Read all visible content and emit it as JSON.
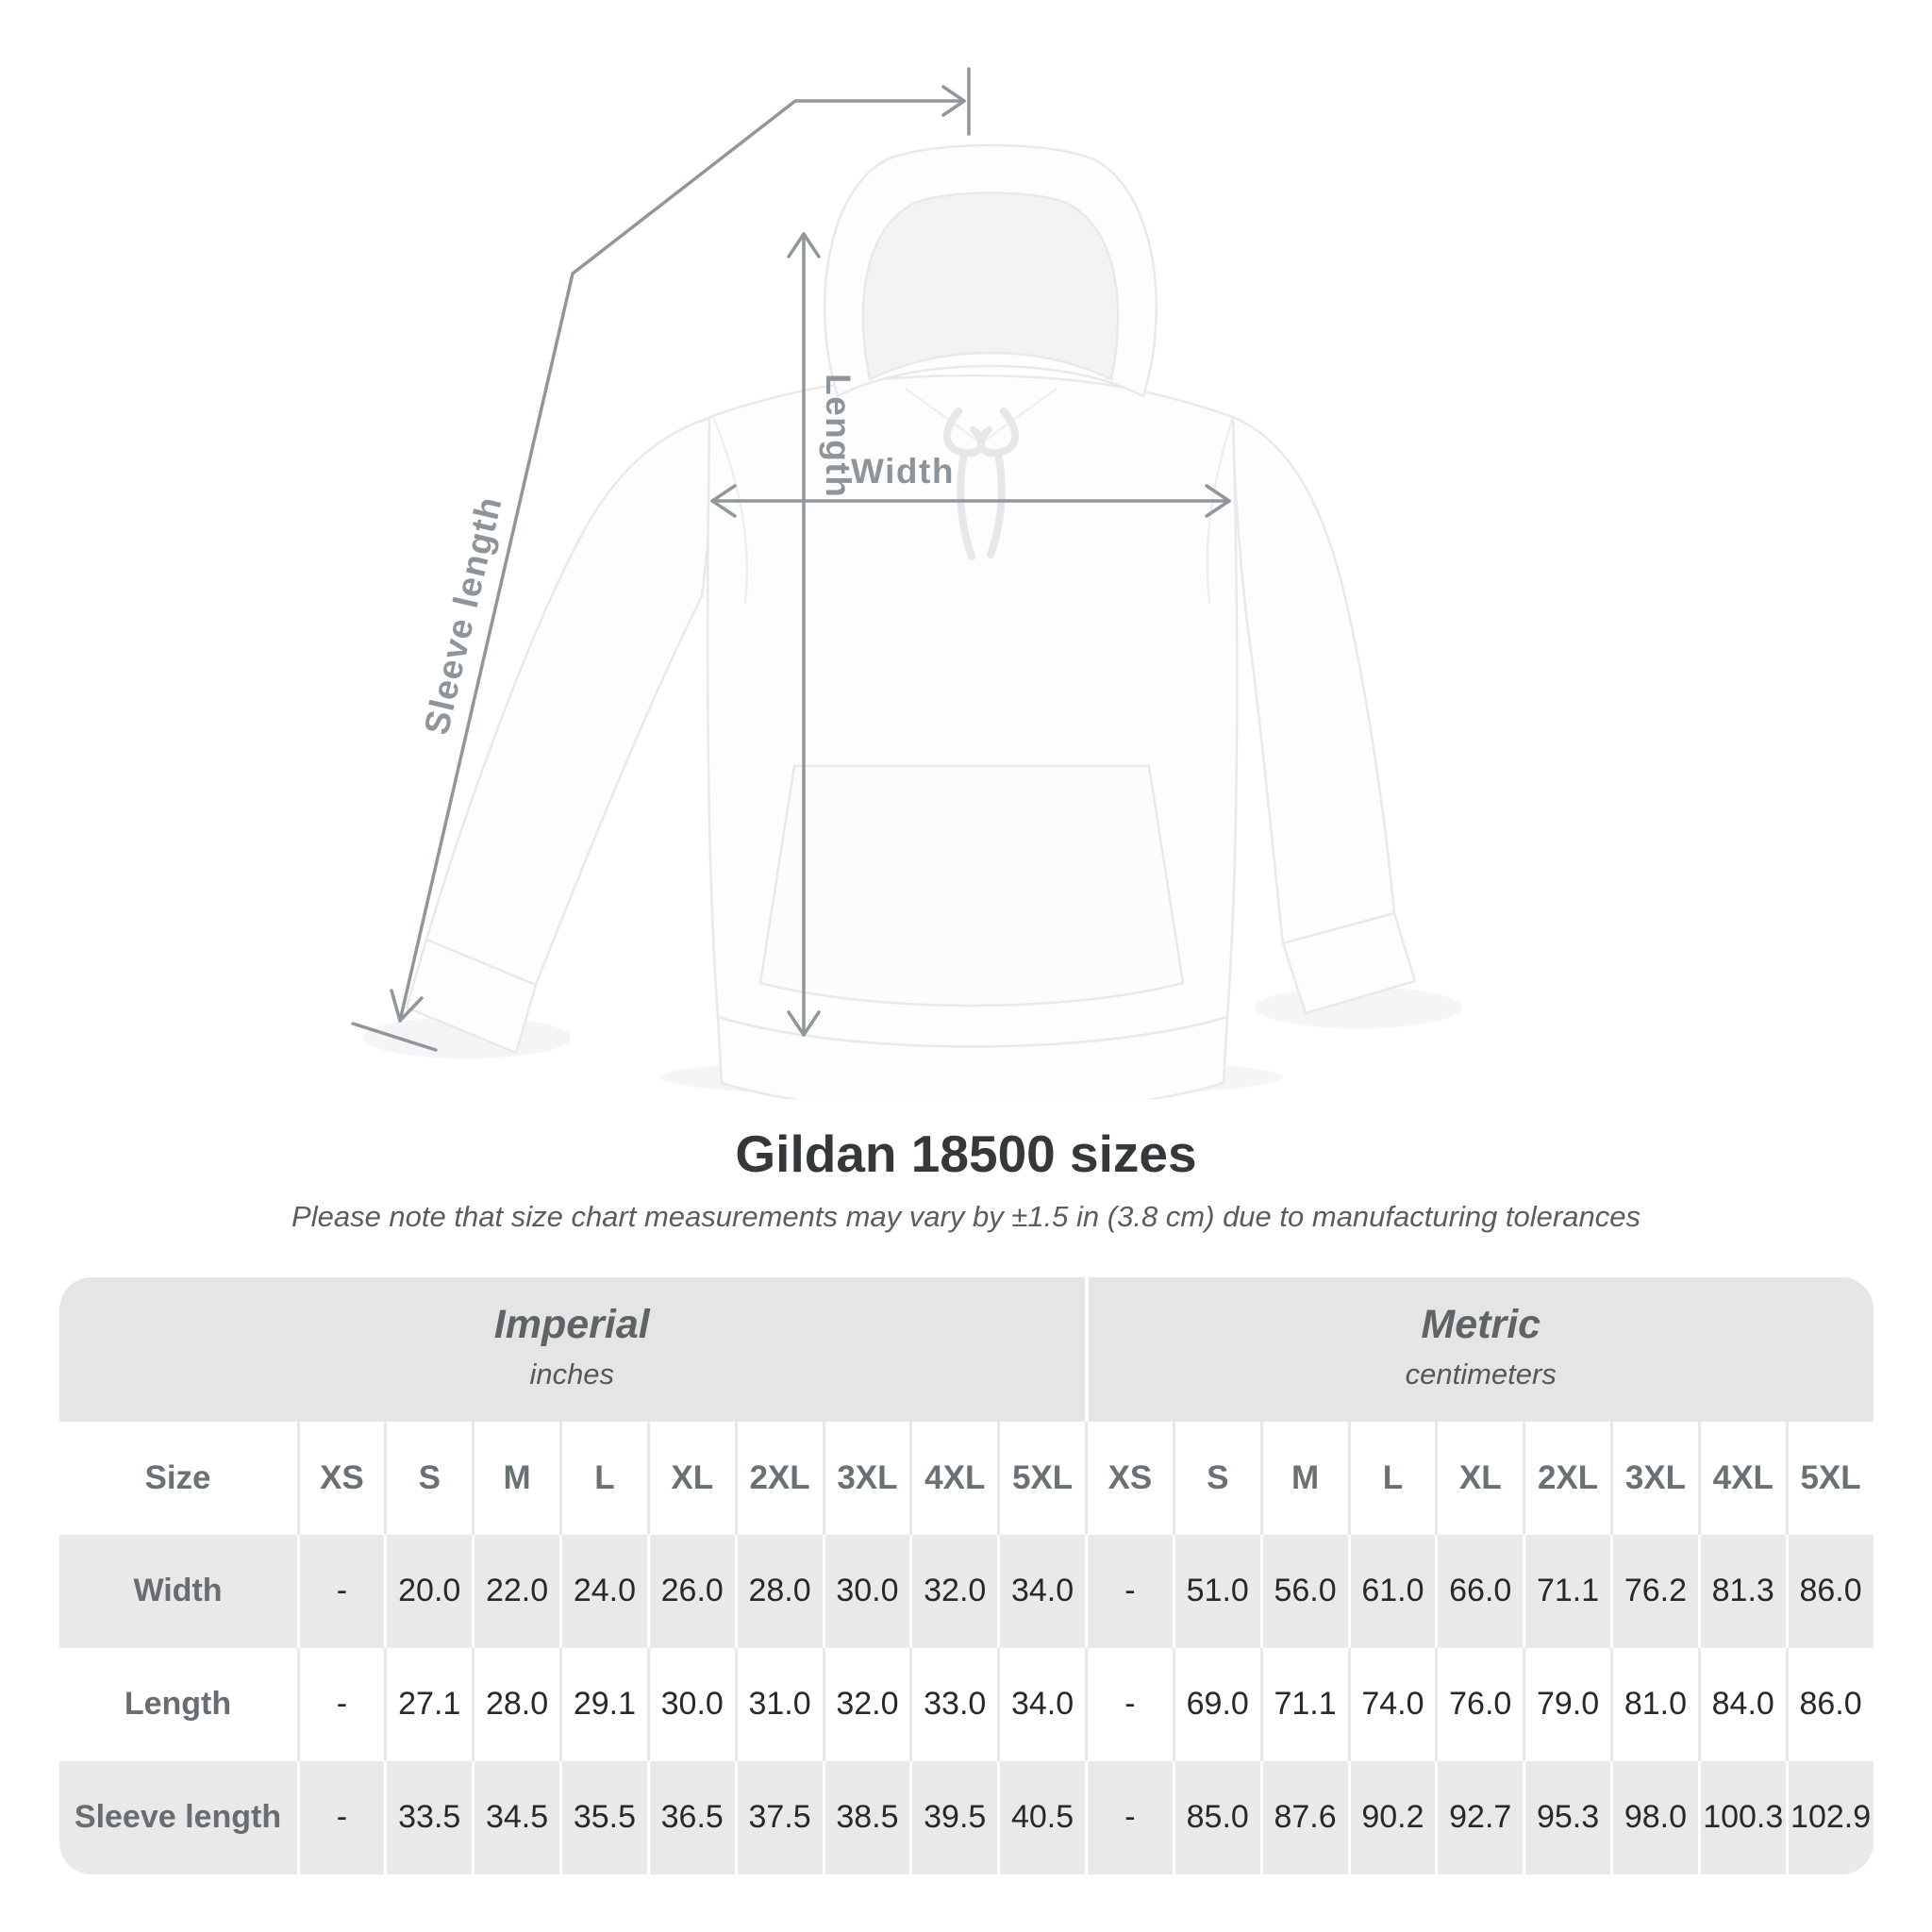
{
  "diagram": {
    "length_label": "Length",
    "width_label": "Width",
    "sleeve_label": "Sleeve length"
  },
  "title": "Gildan 18500 sizes",
  "subtitle": "Please note that size chart measurements may vary by ±1.5 in (3.8 cm) due to manufacturing tolerances",
  "table": {
    "unit_groups": [
      {
        "name": "Imperial",
        "unit": "inches"
      },
      {
        "name": "Metric",
        "unit": "centimeters"
      }
    ],
    "size_header": "Size",
    "sizes": [
      "XS",
      "S",
      "M",
      "L",
      "XL",
      "2XL",
      "3XL",
      "4XL",
      "5XL"
    ],
    "rows": [
      {
        "label": "Width",
        "imperial": [
          "-",
          "20.0",
          "22.0",
          "24.0",
          "26.0",
          "28.0",
          "30.0",
          "32.0",
          "34.0"
        ],
        "metric": [
          "-",
          "51.0",
          "56.0",
          "61.0",
          "66.0",
          "71.1",
          "76.2",
          "81.3",
          "86.0"
        ]
      },
      {
        "label": "Length",
        "imperial": [
          "-",
          "27.1",
          "28.0",
          "29.1",
          "30.0",
          "31.0",
          "32.0",
          "33.0",
          "34.0"
        ],
        "metric": [
          "-",
          "69.0",
          "71.1",
          "74.0",
          "76.0",
          "79.0",
          "81.0",
          "84.0",
          "86.0"
        ]
      },
      {
        "label": "Sleeve length",
        "imperial": [
          "-",
          "33.5",
          "34.5",
          "35.5",
          "36.5",
          "37.5",
          "38.5",
          "39.5",
          "40.5"
        ],
        "metric": [
          "-",
          "85.0",
          "87.6",
          "90.2",
          "92.7",
          "95.3",
          "98.0",
          "100.3",
          "102.9"
        ]
      }
    ]
  },
  "chart_data": {
    "type": "table",
    "title": "Gildan 18500 sizes",
    "note": "Please note that size chart measurements may vary by ±1.5 in (3.8 cm) due to manufacturing tolerances",
    "columns": [
      "Size",
      "XS",
      "S",
      "M",
      "L",
      "XL",
      "2XL",
      "3XL",
      "4XL",
      "5XL"
    ],
    "unit_groups": [
      "Imperial (inches)",
      "Metric (centimeters)"
    ],
    "imperial_rows": [
      [
        "Width",
        null,
        20.0,
        22.0,
        24.0,
        26.0,
        28.0,
        30.0,
        32.0,
        34.0
      ],
      [
        "Length",
        null,
        27.1,
        28.0,
        29.1,
        30.0,
        31.0,
        32.0,
        33.0,
        34.0
      ],
      [
        "Sleeve length",
        null,
        33.5,
        34.5,
        35.5,
        36.5,
        37.5,
        38.5,
        39.5,
        40.5
      ]
    ],
    "metric_rows": [
      [
        "Width",
        null,
        51.0,
        56.0,
        61.0,
        66.0,
        71.1,
        76.2,
        81.3,
        86.0
      ],
      [
        "Length",
        null,
        69.0,
        71.1,
        74.0,
        76.0,
        79.0,
        81.0,
        84.0,
        86.0
      ],
      [
        "Sleeve length",
        null,
        85.0,
        87.6,
        90.2,
        92.7,
        95.3,
        98.0,
        100.3,
        102.9
      ]
    ]
  }
}
